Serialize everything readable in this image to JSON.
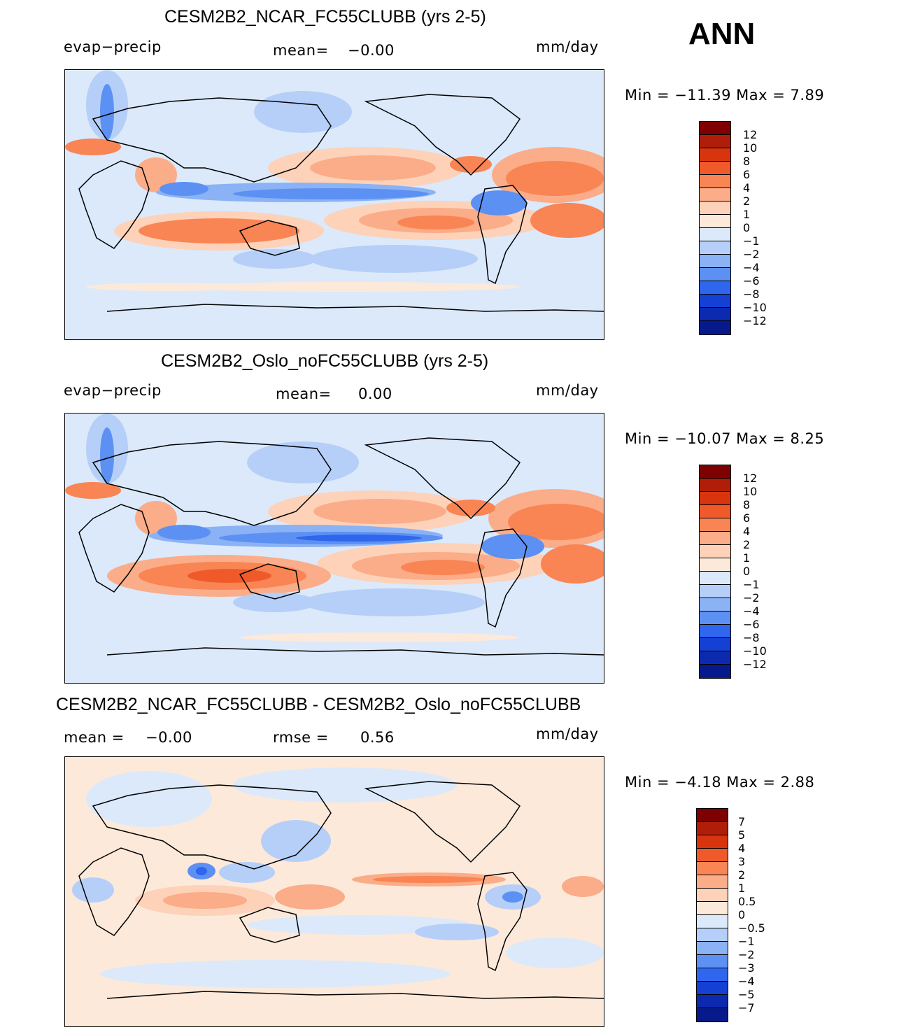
{
  "season": "ANN",
  "units": "mm/day",
  "variable": "evap−precip",
  "panels": [
    {
      "title": "CESM2B2_NCAR_FC55CLUBB (yrs 2-5)",
      "left_label": "evap−precip",
      "stat_label": "mean=",
      "stat_value": "−0.00",
      "units": "mm/day",
      "minmax": "Min  =  −11.39  Max  =     7.89",
      "legend_key": "abs"
    },
    {
      "title": "CESM2B2_Oslo_noFC55CLUBB (yrs 2-5)",
      "left_label": "evap−precip",
      "stat_label": "mean=",
      "stat_value": "0.00",
      "units": "mm/day",
      "minmax": "Min  =  −10.07  Max  =     8.25",
      "legend_key": "abs"
    },
    {
      "title": "CESM2B2_NCAR_FC55CLUBB - CESM2B2_Oslo_noFC55CLUBB",
      "left_label": "mean  =",
      "left_value": "−0.00",
      "stat_label": "rmse  =",
      "stat_value": "0.56",
      "units": "mm/day",
      "minmax": "Min  =    −4.18  Max  =     2.88",
      "legend_key": "diff"
    }
  ],
  "legends": {
    "abs": {
      "colors": [
        "#7f0000",
        "#b01e0a",
        "#d8350e",
        "#f05a2a",
        "#f98454",
        "#fbac88",
        "#fdd2b8",
        "#fde9da",
        "#dbe9fa",
        "#b5cff8",
        "#8ab2f5",
        "#5c90f2",
        "#2f66ee",
        "#1440d4",
        "#0c2ab0",
        "#061a8c"
      ],
      "labels": [
        "12",
        "10",
        "8",
        "6",
        "4",
        "2",
        "1",
        "0",
        "−1",
        "−2",
        "−4",
        "−6",
        "−8",
        "−10",
        "−12"
      ]
    },
    "diff": {
      "colors": [
        "#7f0000",
        "#b01e0a",
        "#d8350e",
        "#f05a2a",
        "#f98454",
        "#fbac88",
        "#fdd2b8",
        "#fde9da",
        "#dbe9fa",
        "#b5cff8",
        "#8ab2f5",
        "#5c90f2",
        "#2f66ee",
        "#1440d4",
        "#0c2ab0",
        "#061a8c"
      ],
      "labels": [
        "7",
        "5",
        "4",
        "3",
        "2",
        "1",
        "0.5",
        "0",
        "−0.5",
        "−1",
        "−2",
        "−3",
        "−4",
        "−5",
        "−7"
      ]
    }
  }
}
